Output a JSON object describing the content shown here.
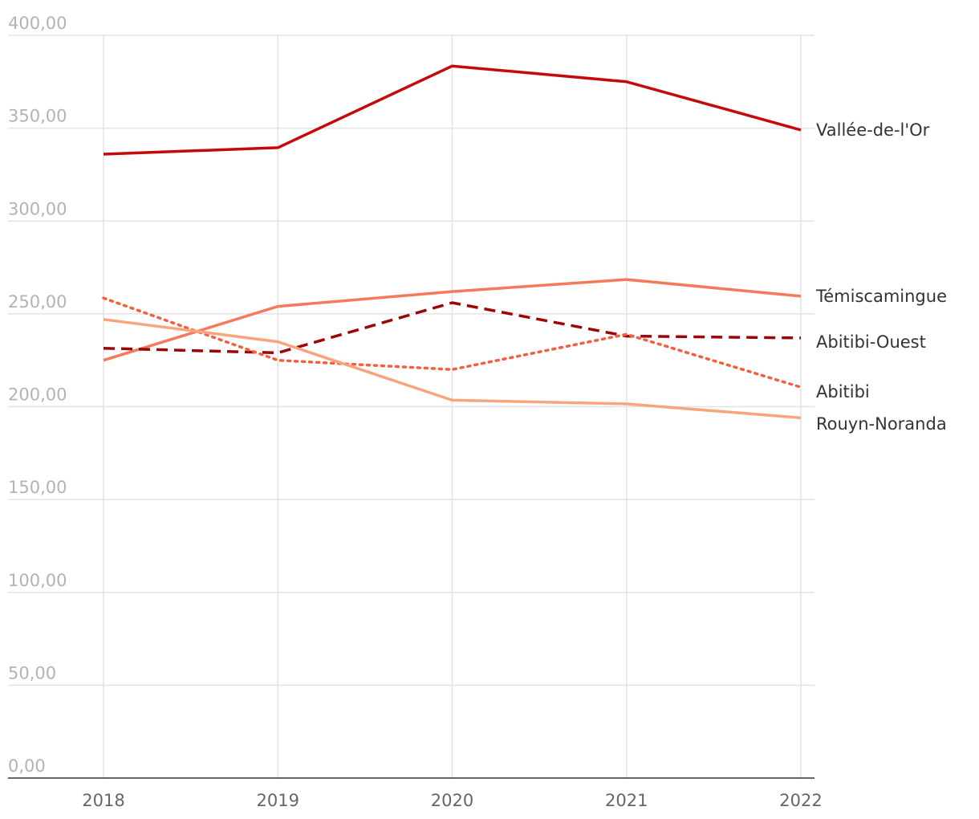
{
  "chart_data": {
    "type": "line",
    "title": "",
    "xlabel": "",
    "ylabel": "",
    "x": [
      "2018",
      "2019",
      "2020",
      "2021",
      "2022"
    ],
    "ylim": [
      0,
      400
    ],
    "ytick_values": [
      0,
      50,
      100,
      150,
      200,
      250,
      300,
      350,
      400
    ],
    "ytick_labels": [
      "0,00",
      "50,00",
      "100,00",
      "150,00",
      "200,00",
      "250,00",
      "300,00",
      "350,00",
      "400,00"
    ],
    "grid": true,
    "legend": "inline labels at right end of each line",
    "series": [
      {
        "name": "Vallée-de-l'Or",
        "values": [
          336,
          339.5,
          383.5,
          375,
          349
        ],
        "color": "#c40a0a",
        "style": "solid"
      },
      {
        "name": "Témiscamingue",
        "values": [
          225,
          254,
          262,
          268.5,
          259.5
        ],
        "color": "#f5795a",
        "style": "solid"
      },
      {
        "name": "Abitibi-Ouest",
        "values": [
          231.5,
          229,
          256,
          238,
          237
        ],
        "color": "#9c0606",
        "style": "dashed"
      },
      {
        "name": "Abitibi",
        "values": [
          258.5,
          225,
          220,
          239,
          210.5
        ],
        "color": "#f4603d",
        "style": "dotted"
      },
      {
        "name": "Rouyn-Noranda",
        "values": [
          247,
          235,
          203.5,
          201.5,
          194
        ],
        "color": "#f8a47c",
        "style": "solid"
      }
    ]
  }
}
